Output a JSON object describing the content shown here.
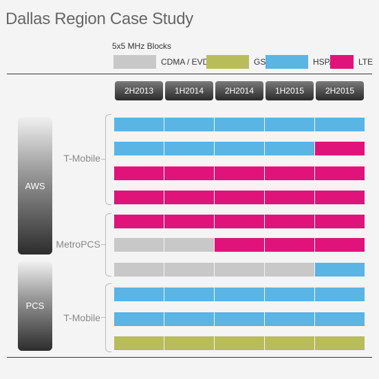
{
  "title": "Dallas Region Case Study",
  "legend": {
    "heading": "5x5 MHz Blocks",
    "items": [
      {
        "label": "CDMA / EVDO",
        "color": "#c8c8c8"
      },
      {
        "label": "GSM",
        "color": "#b8bd5a"
      },
      {
        "label": "HSPA+",
        "color": "#5ab4e4"
      },
      {
        "label": "LTE",
        "color": "#e0137a"
      }
    ]
  },
  "periods": [
    "2H2013",
    "1H2014",
    "2H2014",
    "1H2015",
    "2H2015"
  ],
  "bands": [
    {
      "label": "AWS"
    },
    {
      "label": "PCS"
    }
  ],
  "groups": [
    {
      "label": "T-Mobile"
    },
    {
      "label": "MetroPCS"
    },
    {
      "label": "T-Mobile"
    }
  ],
  "tech_colors": {
    "CDMA": "#c8c8c8",
    "GSM": "#b8bd5a",
    "HSPA": "#5ab4e4",
    "LTE": "#e0137a"
  },
  "rows": [
    [
      "HSPA",
      "HSPA",
      "HSPA",
      "HSPA",
      "HSPA"
    ],
    [
      "HSPA",
      "HSPA",
      "HSPA",
      "HSPA",
      "LTE"
    ],
    [
      "LTE",
      "LTE",
      "LTE",
      "LTE",
      "LTE"
    ],
    [
      "LTE",
      "LTE",
      "LTE",
      "LTE",
      "LTE"
    ],
    [
      "LTE",
      "LTE",
      "LTE",
      "LTE",
      "LTE"
    ],
    [
      "CDMA",
      "CDMA",
      "LTE",
      "LTE",
      "LTE"
    ],
    [
      "CDMA",
      "CDMA",
      "CDMA",
      "CDMA",
      "HSPA"
    ],
    [
      "HSPA",
      "HSPA",
      "HSPA",
      "HSPA",
      "HSPA"
    ],
    [
      "HSPA",
      "HSPA",
      "HSPA",
      "HSPA",
      "HSPA"
    ],
    [
      "GSM",
      "GSM",
      "GSM",
      "GSM",
      "GSM"
    ]
  ]
}
